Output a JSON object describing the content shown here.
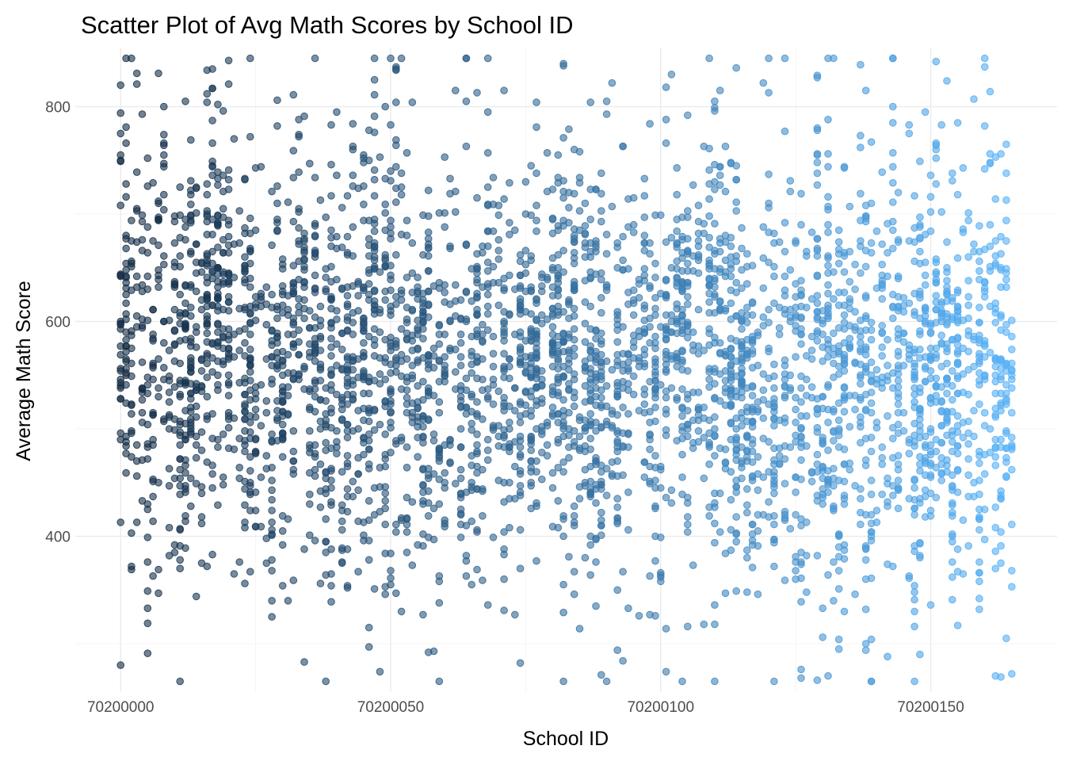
{
  "chart_data": {
    "type": "scatter",
    "title": "Scatter Plot of Avg Math Scores by School ID",
    "xlabel": "School ID",
    "ylabel": "Average Math Score",
    "xlim": [
      70199991.6,
      70200173.4
    ],
    "ylim": [
      255,
      855
    ],
    "x_ticks": [
      70200000,
      70200050,
      70200100,
      70200150
    ],
    "x_tick_labels": [
      "70200000",
      "70200050",
      "70200100",
      "70200150"
    ],
    "y_ticks": [
      400,
      600,
      800
    ],
    "y_tick_labels": [
      "400",
      "600",
      "800"
    ],
    "grid": true,
    "legend": "none",
    "color_scale": {
      "low": "#132b43",
      "high": "#56b1f7",
      "mapped_to": "School ID"
    },
    "point_alpha": 0.6,
    "x_range_observed": [
      70200000,
      70200165
    ],
    "y_range_observed": [
      265,
      845
    ],
    "approx_point_count": 4000,
    "sample_points": [
      {
        "x": 70200000,
        "y": 820
      },
      {
        "x": 70200000,
        "y": 280
      },
      {
        "x": 70200002,
        "y": 845
      },
      {
        "x": 70200012,
        "y": 805
      },
      {
        "x": 70200018,
        "y": 802
      },
      {
        "x": 70200040,
        "y": 795
      },
      {
        "x": 70200062,
        "y": 815
      },
      {
        "x": 70200091,
        "y": 822
      },
      {
        "x": 70200101,
        "y": 818
      },
      {
        "x": 70200119,
        "y": 822
      },
      {
        "x": 70200138,
        "y": 815
      },
      {
        "x": 70200104,
        "y": 265
      },
      {
        "x": 70200148,
        "y": 290
      },
      {
        "x": 70200162,
        "y": 270
      },
      {
        "x": 70200155,
        "y": 785
      },
      {
        "x": 70200164,
        "y": 305
      },
      {
        "x": 70200074,
        "y": 282
      },
      {
        "x": 70200034,
        "y": 283
      }
    ]
  }
}
